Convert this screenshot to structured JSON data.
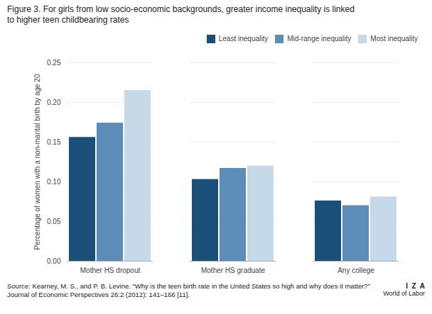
{
  "chart_data": {
    "type": "bar",
    "title": "Figure 3. For girls from low socio-economic backgrounds, greater income inequality is linked\nto higher teen childbearing rates",
    "categories": [
      "Mother HS dropout",
      "Mother HS graduate",
      "Any college"
    ],
    "series": [
      {
        "name": "Least inequality",
        "color": "#1a4f7a",
        "values": [
          0.156,
          0.103,
          0.076
        ]
      },
      {
        "name": "Mid-range inequality",
        "color": "#5b8db8",
        "values": [
          0.174,
          0.117,
          0.07
        ]
      },
      {
        "name": "Most inequality",
        "color": "#c5d9e8",
        "values": [
          0.215,
          0.12,
          0.081
        ]
      }
    ],
    "ylabel": "Percentage of women with a non-marital birth by age 20",
    "ylim": [
      0,
      0.25
    ],
    "yticks": [
      {
        "value": 0,
        "label": "0.00"
      },
      {
        "value": 0.05,
        "label": "0.05"
      },
      {
        "value": 0.1,
        "label": "0.10"
      },
      {
        "value": 0.15,
        "label": "0.15"
      },
      {
        "value": 0.2,
        "label": "0.20"
      },
      {
        "value": 0.25,
        "label": "0.25"
      }
    ],
    "grid": true,
    "legend": "upper right",
    "annotations": [
      "Source: Kearney, M. S., and P. B. Levine. “Why is the teen birth rate in the United States so high and why does it matter?” Journal of Economic Perspectives 26:2 (2012): 141–166 [11].",
      "I  Z  A",
      "World of Labor"
    ]
  }
}
